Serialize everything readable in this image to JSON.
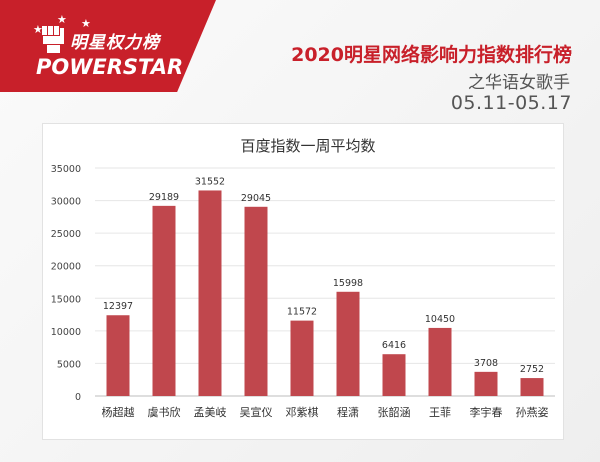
{
  "header": {
    "logo_top": "明星权力榜",
    "logo_bottom": "POWERSTAR",
    "title": "2020明星网络影响力指数排行榜",
    "subtitle": "之华语女歌手",
    "date_range": "05.11-05.17"
  },
  "colors": {
    "accent": "#c8202a",
    "bar": "#c0474d"
  },
  "chart_data": {
    "type": "bar",
    "title": "百度指数一周平均数",
    "xlabel": "",
    "ylabel": "",
    "ylim": [
      0,
      35000
    ],
    "yticks": [
      0,
      5000,
      10000,
      15000,
      20000,
      25000,
      30000,
      35000
    ],
    "grid": true,
    "categories": [
      "杨超越",
      "虞书欣",
      "孟美岐",
      "吴宣仪",
      "邓紫棋",
      "程潇",
      "张韶涵",
      "王菲",
      "李宇春",
      "孙燕姿"
    ],
    "values": [
      12397,
      29189,
      31552,
      29045,
      11572,
      15998,
      6416,
      10450,
      3708,
      2752
    ]
  }
}
